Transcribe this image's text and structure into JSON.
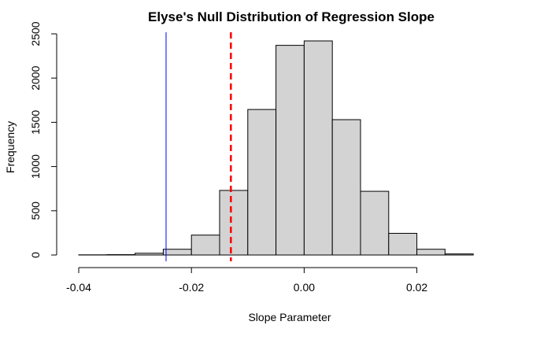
{
  "chart_data": {
    "type": "bar",
    "title": "Elyse's Null Distribution of Regression Slope",
    "xlabel": "Slope Parameter",
    "ylabel": "Frequency",
    "xlim": [
      -0.04,
      0.035
    ],
    "ylim": [
      0,
      2500
    ],
    "x_ticks": [
      -0.04,
      -0.02,
      0.0,
      0.02
    ],
    "x_tick_labels": [
      "-0.04",
      "-0.02",
      "0.00",
      "0.02"
    ],
    "y_ticks": [
      0,
      500,
      1000,
      1500,
      2000,
      2500
    ],
    "y_tick_labels": [
      "0",
      "500",
      "1000",
      "1500",
      "2000",
      "2500"
    ],
    "bin_edges": [
      -0.04,
      -0.035,
      -0.03,
      -0.025,
      -0.02,
      -0.015,
      -0.01,
      -0.005,
      0.0,
      0.005,
      0.01,
      0.015,
      0.02,
      0.025,
      0.03
    ],
    "values": [
      2,
      4,
      20,
      65,
      225,
      730,
      1645,
      2370,
      2420,
      1530,
      720,
      245,
      65,
      12
    ],
    "bar_color": "#d3d3d3",
    "reference_lines": [
      {
        "x": -0.0245,
        "color": "#0000ff",
        "style": "solid"
      },
      {
        "x": -0.013,
        "color": "#ff0000",
        "style": "dashed"
      }
    ],
    "grid": false
  }
}
